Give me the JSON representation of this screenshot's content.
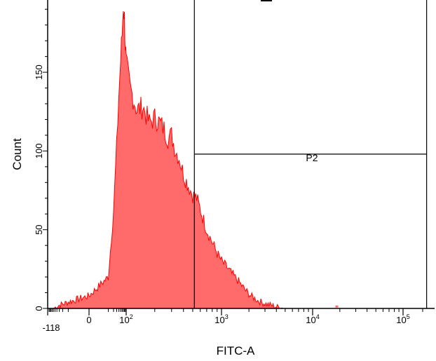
{
  "chart_data": {
    "type": "area",
    "xlabel": "FITC-A",
    "ylabel": "Count",
    "x_scale": "biexponential",
    "xlim": [
      -118,
      250000
    ],
    "ylim": [
      0,
      195
    ],
    "grid": false,
    "x_ticks": [
      {
        "value": -118,
        "label": "-118",
        "sup": ""
      },
      {
        "value": 0,
        "label": "0",
        "sup": ""
      },
      {
        "value": 100,
        "label": "10",
        "sup": "2"
      },
      {
        "value": 1000,
        "label": "10",
        "sup": "3"
      },
      {
        "value": 10000,
        "label": "10",
        "sup": "4"
      },
      {
        "value": 100000,
        "label": "10",
        "sup": "5"
      }
    ],
    "y_ticks": [
      0,
      50,
      100,
      150
    ],
    "series": [
      {
        "color": "#ff6a6a",
        "stroke": "#ff0000",
        "x": [
          -60,
          -30,
          -10,
          0,
          10,
          20,
          30,
          40,
          50,
          60,
          70,
          80,
          90,
          100,
          110,
          130,
          150,
          175,
          200,
          225,
          250,
          275,
          300,
          330,
          360,
          400,
          450,
          500,
          550,
          620,
          700,
          800,
          900,
          1000,
          1150,
          1300,
          1500,
          1800,
          2100,
          2500,
          3000,
          3500,
          4000,
          5000
        ],
        "y": [
          0,
          2,
          4,
          8,
          20,
          62,
          102,
          136,
          158,
          174,
          193,
          184,
          168,
          155,
          140,
          126,
          128,
          118,
          121,
          118,
          114,
          108,
          110,
          100,
          96,
          85,
          78,
          72,
          70,
          60,
          50,
          42,
          35,
          30,
          26,
          22,
          18,
          12,
          8,
          5,
          3,
          2,
          1,
          0
        ]
      }
    ],
    "markers": [
      {
        "x": 18500,
        "y": 1
      }
    ],
    "gates": [
      {
        "name": "P2",
        "x_start": 520,
        "x_end": 230000,
        "y_level": 98
      }
    ]
  }
}
